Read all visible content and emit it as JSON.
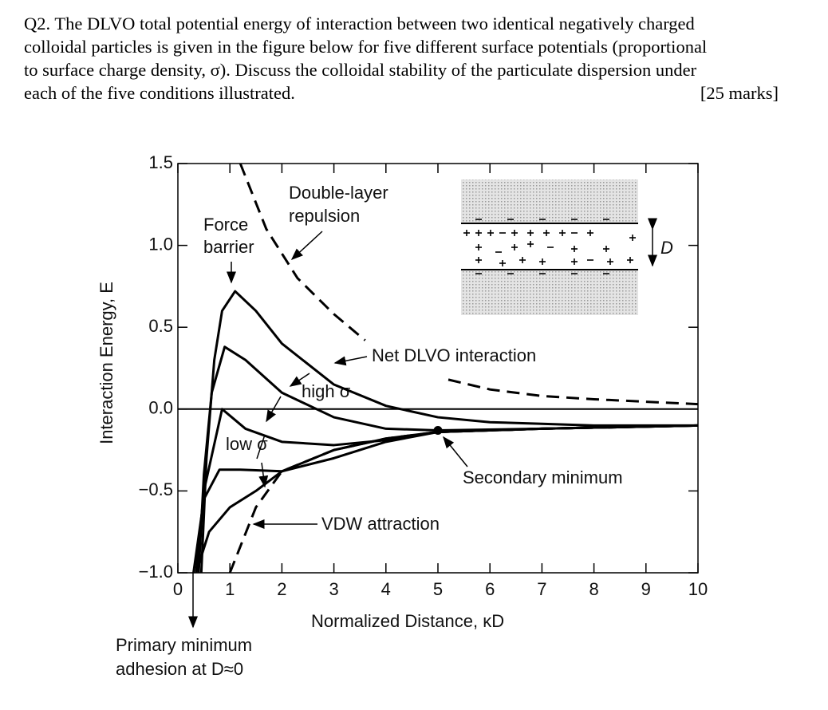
{
  "question": {
    "lines": [
      "Q2. The DLVO total potential energy of interaction between two identical negatively charged",
      "colloidal particles is given in the figure below for five different surface potentials (proportional",
      "to surface charge density, σ). Discuss the colloidal stability of the particulate dispersion under",
      "each of the five conditions illustrated."
    ],
    "marks": "[25 marks]"
  },
  "chart_data": {
    "type": "line",
    "xlabel": "Normalized Distance, κD",
    "ylabel": "Interaction Energy, E",
    "xlim": [
      0,
      10
    ],
    "ylim": [
      -1.0,
      1.5
    ],
    "xticks": [
      0,
      1,
      2,
      3,
      4,
      5,
      6,
      7,
      8,
      9,
      10
    ],
    "yticks": [
      1.5,
      {
        "value": 1,
        "label": "1.0"
      },
      0.5,
      {
        "value": 0,
        "label": "0.0"
      },
      {
        "value": -0.5,
        "label": "−0.5"
      },
      {
        "value": -1,
        "label": "−1.0"
      }
    ],
    "series": [
      {
        "color": "#000000",
        "dashed": false,
        "x": [
          0.45,
          0.55,
          0.7,
          0.85,
          1.1,
          1.5,
          2,
          3,
          4,
          5,
          6,
          7,
          8,
          10
        ],
        "values": [
          -1.0,
          -0.3,
          0.3,
          0.6,
          0.72,
          0.6,
          0.4,
          0.15,
          0.02,
          -0.05,
          -0.08,
          -0.09,
          -0.1,
          -0.1
        ]
      },
      {
        "color": "#000000",
        "dashed": false,
        "x": [
          0.4,
          0.5,
          0.65,
          0.9,
          1.3,
          2,
          3,
          4,
          5,
          7,
          10
        ],
        "values": [
          -1.0,
          -0.4,
          0.1,
          0.38,
          0.3,
          0.1,
          -0.05,
          -0.12,
          -0.13,
          -0.12,
          -0.1
        ]
      },
      {
        "color": "#000000",
        "dashed": false,
        "x": [
          0.35,
          0.5,
          0.85,
          1.3,
          2,
          3,
          4,
          5,
          7,
          10
        ],
        "values": [
          -1.0,
          -0.5,
          0.0,
          -0.12,
          -0.2,
          -0.22,
          -0.19,
          -0.14,
          -0.12,
          -0.1
        ]
      },
      {
        "color": "#000000",
        "dashed": false,
        "x": [
          0.3,
          0.5,
          0.8,
          1.2,
          2,
          3,
          4,
          5,
          7,
          10
        ],
        "values": [
          -1.0,
          -0.55,
          -0.37,
          -0.37,
          -0.38,
          -0.3,
          -0.2,
          -0.14,
          -0.12,
          -0.1
        ]
      },
      {
        "color": "#000000",
        "dashed": false,
        "x": [
          0.35,
          0.6,
          1,
          1.5,
          2,
          3,
          4,
          5,
          7,
          10
        ],
        "values": [
          -1.0,
          -0.75,
          -0.6,
          -0.5,
          -0.38,
          -0.25,
          -0.18,
          -0.14,
          -0.12,
          -0.1
        ]
      },
      {
        "color": "#000000",
        "dashed": true,
        "x": [
          1.0,
          1.5,
          2,
          3,
          4,
          5,
          7,
          10
        ],
        "values": [
          -1.0,
          -0.6,
          -0.38,
          -0.25,
          -0.18,
          -0.14,
          -0.12,
          -0.1
        ]
      },
      {
        "color": "#000000",
        "dashed": true,
        "x": [
          1.2,
          1.7,
          2.3,
          3,
          3.6,
          null,
          5.2,
          6,
          7,
          8,
          10
        ],
        "values": [
          1.5,
          1.1,
          0.8,
          0.58,
          0.42,
          null,
          0.18,
          0.12,
          0.08,
          0.06,
          0.03
        ]
      }
    ],
    "secondary_minimum": {
      "x": 5,
      "value": -0.13
    },
    "annotations": [
      "Force",
      "barrier",
      "Double-layer",
      "repulsion",
      "Net DLVO interaction",
      "high σ",
      "low σ",
      "Secondary minimum",
      "VDW attraction",
      "Primary minimum",
      "adhesion at D≈0",
      "D"
    ]
  }
}
